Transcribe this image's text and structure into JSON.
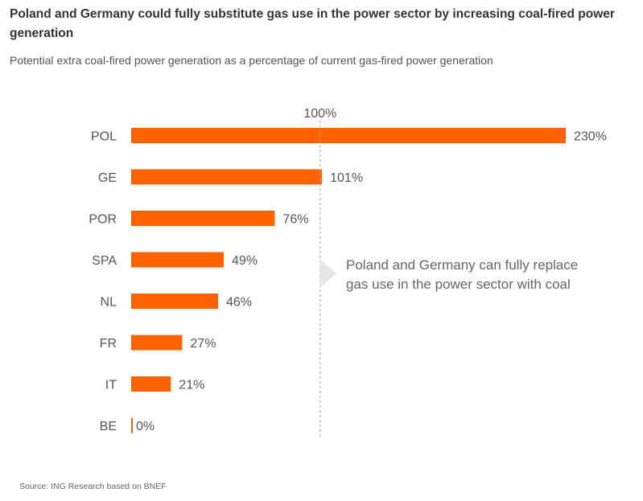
{
  "title": "Poland and Germany could fully substitute gas use in the power sector by increasing coal-fired power generation",
  "subtitle": "Potential extra coal-fired power generation as a percentage of current gas-fired power generation",
  "source": "Source: ING Research based on BNEF",
  "colors": {
    "bar": "#ff6200",
    "reference_line": "#aaaaaa",
    "callout_arrow": "#e6e6e6"
  },
  "chart_data": {
    "type": "bar",
    "orientation": "horizontal",
    "categories": [
      "POL",
      "GE",
      "POR",
      "SPA",
      "NL",
      "FR",
      "IT",
      "BE"
    ],
    "values": [
      230,
      101,
      76,
      49,
      46,
      27,
      21,
      0
    ],
    "value_labels": [
      "230%",
      "101%",
      "76%",
      "49%",
      "46%",
      "27%",
      "21%",
      "0%"
    ],
    "unit": "%",
    "xlim": [
      0,
      230
    ],
    "reference_line": {
      "value": 100,
      "label": "100%",
      "style": "dashed"
    },
    "annotation": "Poland and Germany can fully replace gas use in the power sector with coal",
    "annotation_lines": [
      "Poland and Germany can fully replace",
      "gas use in the power sector with coal"
    ],
    "grid": false,
    "legend": "none"
  }
}
